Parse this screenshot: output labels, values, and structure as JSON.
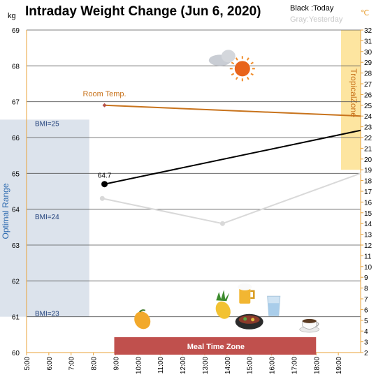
{
  "chart_data": {
    "type": "line",
    "title": "Intraday Weight Change (Jun 6, 2020)",
    "legend": {
      "today": "Black :Today",
      "yesterday": "Gray:Yesterday"
    },
    "y_left": {
      "unit": "kg",
      "min": 60,
      "max": 69,
      "ticks": [
        60,
        61,
        62,
        63,
        64,
        65,
        66,
        67,
        68,
        69
      ]
    },
    "y_right": {
      "unit": "℃",
      "min": 2,
      "max": 32,
      "ticks": [
        2,
        3,
        4,
        5,
        6,
        7,
        8,
        9,
        10,
        11,
        12,
        13,
        14,
        15,
        16,
        17,
        18,
        19,
        20,
        21,
        22,
        23,
        24,
        25,
        26,
        27,
        28,
        29,
        30,
        31,
        32
      ]
    },
    "x": {
      "min_hour": 5,
      "max_hour": 20,
      "ticks": [
        {
          "h": 5,
          "label": "5:00"
        },
        {
          "h": 6,
          "label": "6:00"
        },
        {
          "h": 7,
          "label": "7:00"
        },
        {
          "h": 8,
          "label": "8:00"
        },
        {
          "h": 9,
          "label": "9:00"
        },
        {
          "h": 10,
          "label": "10:00"
        },
        {
          "h": 11,
          "label": "11:00"
        },
        {
          "h": 12,
          "label": "12:00"
        },
        {
          "h": 13,
          "label": "13:00"
        },
        {
          "h": 14,
          "label": "14:00"
        },
        {
          "h": 15,
          "label": "15:00"
        },
        {
          "h": 16,
          "label": "16:00"
        },
        {
          "h": 17,
          "label": "17:00"
        },
        {
          "h": 18,
          "label": "18:00"
        },
        {
          "h": 19,
          "label": "19:00"
        }
      ]
    },
    "series": [
      {
        "name": "Today",
        "color": "#000000",
        "points": [
          {
            "h": 8.5,
            "kg": 64.7,
            "label": "64.7"
          },
          {
            "h": 20,
            "kg": 66.2
          }
        ]
      },
      {
        "name": "Yesterday",
        "color": "#d9d9d9",
        "points": [
          {
            "h": 8.4,
            "kg": 64.3
          },
          {
            "h": 13.8,
            "kg": 63.6
          },
          {
            "h": 20,
            "kg": 65.0
          }
        ]
      },
      {
        "name": "Room Temp.",
        "axis": "right",
        "color": "#c8731c",
        "points": [
          {
            "h": 8.5,
            "c": 25.0
          },
          {
            "h": 20,
            "c": 24.0
          }
        ]
      }
    ],
    "optimal_range": {
      "label": "Optimal Range",
      "kg_min": 61,
      "kg_max": 66.5,
      "h_min": 5,
      "h_max": 7
    },
    "bmi_marks": [
      {
        "label": "BMI=25",
        "kg": 66.4
      },
      {
        "label": "BMI=24",
        "kg": 63.8
      },
      {
        "label": "BMI=23",
        "kg": 61.1
      }
    ],
    "tropical_zone": {
      "label": "TropicalZone",
      "c_min": 19,
      "c_max": 32,
      "h_min": 19.5,
      "h_max": 20
    },
    "meal_time_zone": {
      "label": "Meal Time Zone",
      "h_min": 9,
      "h_max": 18.0
    },
    "icons": [
      {
        "name": "cloud-sun-icon",
        "h": 14.0,
        "kg": 68.0
      },
      {
        "name": "mango-icon",
        "h": 10.2,
        "kg": 60.9
      },
      {
        "name": "pineapple-icon",
        "h": 13.7,
        "kg": 61.3
      },
      {
        "name": "beer-icon",
        "h": 14.8,
        "kg": 61.6
      },
      {
        "name": "grill-pot-icon",
        "h": 15.0,
        "kg": 60.9
      },
      {
        "name": "water-glass-icon",
        "h": 16.1,
        "kg": 61.3
      },
      {
        "name": "coffee-cup-icon",
        "h": 17.7,
        "kg": 60.8
      }
    ]
  }
}
